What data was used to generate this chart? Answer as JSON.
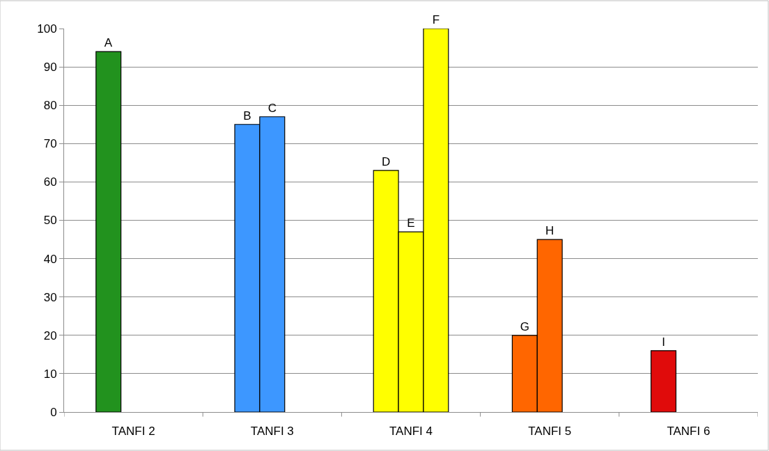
{
  "chart_data": {
    "type": "bar",
    "categories": [
      "TANFI 2",
      "TANFI 3",
      "TANFI 4",
      "TANFI 5",
      "TANFI 6"
    ],
    "series": [
      {
        "colors": [
          "#22921e",
          "#3d97ff",
          "#ffff00",
          "#ff6600",
          "#e00b0b"
        ],
        "values": [
          94,
          75,
          63,
          20,
          16
        ],
        "value_labels": [
          "A",
          "B",
          "D",
          "G",
          "I"
        ]
      },
      {
        "colors": [
          null,
          "#3d97ff",
          "#ffff00",
          "#ff6600",
          null
        ],
        "values": [
          null,
          77,
          47,
          45,
          null
        ],
        "value_labels": [
          null,
          "C",
          "E",
          "H",
          null
        ]
      },
      {
        "colors": [
          null,
          null,
          "#ffff00",
          null,
          null
        ],
        "values": [
          null,
          null,
          100,
          null,
          null
        ],
        "value_labels": [
          null,
          null,
          "F",
          null,
          null
        ]
      }
    ],
    "ylim": [
      0,
      100
    ],
    "yticks": [
      0,
      10,
      20,
      30,
      40,
      50,
      60,
      70,
      80,
      90,
      100
    ],
    "grid": "y"
  }
}
